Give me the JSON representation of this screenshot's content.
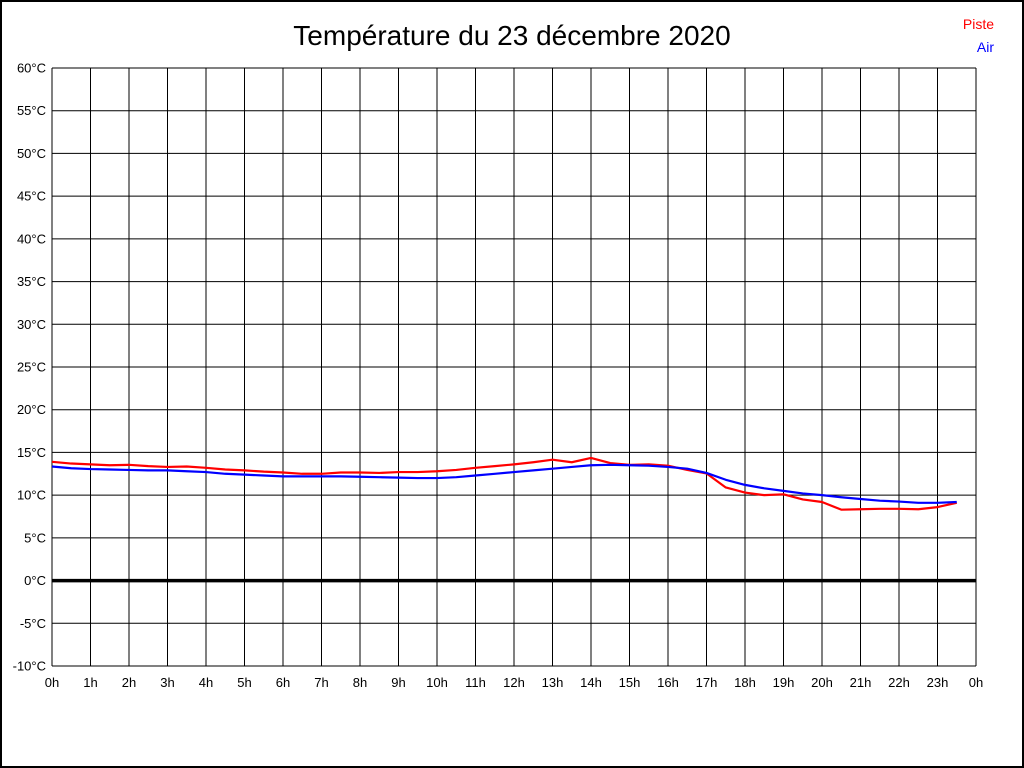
{
  "title": "Température du 23 décembre 2020",
  "legend": {
    "piste": "Piste",
    "air": "Air"
  },
  "colors": {
    "piste": "#ff0000",
    "air": "#0000ff",
    "grid": "#000000",
    "zero_line": "#000000",
    "text": "#000000",
    "background": "#ffffff",
    "border": "#000000"
  },
  "chart_data": {
    "type": "line",
    "title": "Température du 23 décembre 2020",
    "xlabel": "",
    "ylabel": "",
    "x_unit": "hours",
    "y_unit": "°C",
    "xlim": [
      0,
      24
    ],
    "ylim": [
      -10,
      60
    ],
    "grid": true,
    "zero_line": true,
    "legend_position": "top-right",
    "x_tick_labels": [
      "0h",
      "1h",
      "2h",
      "3h",
      "4h",
      "5h",
      "6h",
      "7h",
      "8h",
      "9h",
      "10h",
      "11h",
      "12h",
      "13h",
      "14h",
      "15h",
      "16h",
      "17h",
      "18h",
      "19h",
      "20h",
      "21h",
      "22h",
      "23h",
      "0h"
    ],
    "y_tick_values": [
      60,
      55,
      50,
      45,
      40,
      35,
      30,
      25,
      20,
      15,
      10,
      5,
      0,
      -5,
      -10
    ],
    "y_tick_labels": [
      "60°C",
      "55°C",
      "50°C",
      "45°C",
      "40°C",
      "35°C",
      "30°C",
      "25°C",
      "20°C",
      "15°C",
      "10°C",
      "5°C",
      "0°C",
      "-5°C",
      "-10°C"
    ],
    "x": [
      0,
      0.5,
      1,
      1.5,
      2,
      2.5,
      3,
      3.5,
      4,
      4.5,
      5,
      5.5,
      6,
      6.5,
      7,
      7.5,
      8,
      8.5,
      9,
      9.5,
      10,
      10.5,
      11,
      11.5,
      12,
      12.5,
      13,
      13.5,
      14,
      14.5,
      15,
      15.5,
      16,
      16.5,
      17,
      17.5,
      18,
      18.5,
      19,
      19.5,
      20,
      20.5,
      21,
      21.5,
      22,
      22.5,
      23,
      23.5
    ],
    "series": [
      {
        "name": "Piste",
        "color": "#ff0000",
        "values": [
          13.9,
          13.7,
          13.6,
          13.5,
          13.55,
          13.4,
          13.3,
          13.35,
          13.2,
          13.0,
          12.9,
          12.75,
          12.65,
          12.5,
          12.5,
          12.65,
          12.65,
          12.6,
          12.7,
          12.7,
          12.8,
          12.95,
          13.2,
          13.4,
          13.6,
          13.85,
          14.15,
          13.85,
          14.35,
          13.75,
          13.55,
          13.6,
          13.45,
          12.95,
          12.55,
          10.9,
          10.3,
          10.0,
          10.1,
          9.5,
          9.2,
          8.3,
          8.35,
          8.4,
          8.4,
          8.35,
          8.6,
          9.1
        ]
      },
      {
        "name": "Air",
        "color": "#0000ff",
        "values": [
          13.35,
          13.15,
          13.05,
          13.0,
          12.95,
          12.9,
          12.9,
          12.8,
          12.7,
          12.5,
          12.4,
          12.3,
          12.2,
          12.2,
          12.2,
          12.2,
          12.15,
          12.1,
          12.05,
          12.0,
          12.0,
          12.1,
          12.3,
          12.5,
          12.7,
          12.9,
          13.1,
          13.3,
          13.5,
          13.55,
          13.5,
          13.45,
          13.3,
          13.1,
          12.6,
          11.8,
          11.2,
          10.8,
          10.5,
          10.2,
          10.0,
          9.75,
          9.55,
          9.35,
          9.25,
          9.1,
          9.1,
          9.2
        ]
      }
    ]
  }
}
